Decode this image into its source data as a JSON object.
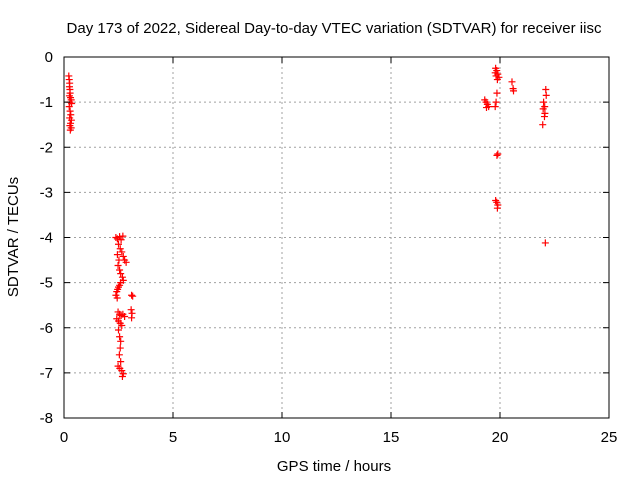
{
  "chart_data": {
    "type": "scatter",
    "title": "Day 173 of 2022, Sidereal Day-to-day VTEC variation (SDTVAR) for receiver iisc",
    "xlabel": "GPS time / hours",
    "ylabel": "SDTVAR / TECUs",
    "xlim": [
      0,
      25
    ],
    "ylim": [
      -8,
      0
    ],
    "xticks": [
      0,
      5,
      10,
      15,
      20,
      25
    ],
    "yticks": [
      0,
      -1,
      -2,
      -3,
      -4,
      -5,
      -6,
      -7,
      -8
    ],
    "grid": true,
    "marker": "+",
    "color": "#ff0000",
    "series": [
      {
        "name": "SDTVAR",
        "points": [
          [
            0.22,
            -0.42
          ],
          [
            0.24,
            -0.5
          ],
          [
            0.26,
            -0.58
          ],
          [
            0.25,
            -0.66
          ],
          [
            0.27,
            -0.72
          ],
          [
            0.28,
            -0.8
          ],
          [
            0.25,
            -0.86
          ],
          [
            0.3,
            -0.9
          ],
          [
            0.33,
            -0.95
          ],
          [
            0.27,
            -1.0
          ],
          [
            0.35,
            -1.03
          ],
          [
            0.24,
            -1.1
          ],
          [
            0.28,
            -1.2
          ],
          [
            0.31,
            -1.28
          ],
          [
            0.26,
            -1.35
          ],
          [
            0.34,
            -1.4
          ],
          [
            0.3,
            -1.47
          ],
          [
            0.27,
            -1.52
          ],
          [
            0.33,
            -1.57
          ],
          [
            0.29,
            -1.62
          ],
          [
            2.38,
            -4.0
          ],
          [
            2.45,
            -4.03
          ],
          [
            2.55,
            -3.98
          ],
          [
            2.62,
            -4.05
          ],
          [
            2.7,
            -3.97
          ],
          [
            2.5,
            -4.15
          ],
          [
            2.58,
            -4.25
          ],
          [
            2.65,
            -4.32
          ],
          [
            2.72,
            -4.42
          ],
          [
            2.78,
            -4.5
          ],
          [
            2.85,
            -4.55
          ],
          [
            2.45,
            -4.38
          ],
          [
            2.52,
            -4.5
          ],
          [
            2.48,
            -4.62
          ],
          [
            2.55,
            -4.72
          ],
          [
            2.6,
            -4.8
          ],
          [
            2.68,
            -4.88
          ],
          [
            2.72,
            -4.95
          ],
          [
            2.6,
            -5.0
          ],
          [
            2.55,
            -5.06
          ],
          [
            2.5,
            -5.1
          ],
          [
            2.46,
            -5.15
          ],
          [
            2.42,
            -5.2
          ],
          [
            2.38,
            -5.28
          ],
          [
            2.44,
            -5.34
          ],
          [
            3.1,
            -5.28
          ],
          [
            3.15,
            -5.3
          ],
          [
            2.48,
            -5.65
          ],
          [
            2.55,
            -5.7
          ],
          [
            2.62,
            -5.73
          ],
          [
            2.7,
            -5.7
          ],
          [
            2.78,
            -5.75
          ],
          [
            2.42,
            -5.8
          ],
          [
            2.5,
            -5.85
          ],
          [
            2.58,
            -5.9
          ],
          [
            2.65,
            -5.95
          ],
          [
            3.08,
            -5.6
          ],
          [
            3.12,
            -5.68
          ],
          [
            3.1,
            -5.78
          ],
          [
            2.5,
            -6.05
          ],
          [
            2.55,
            -6.2
          ],
          [
            2.6,
            -6.3
          ],
          [
            2.58,
            -6.45
          ],
          [
            2.54,
            -6.6
          ],
          [
            2.6,
            -6.75
          ],
          [
            2.48,
            -6.85
          ],
          [
            2.56,
            -6.9
          ],
          [
            2.65,
            -6.95
          ],
          [
            2.72,
            -7.02
          ],
          [
            2.68,
            -7.08
          ],
          [
            19.3,
            -0.95
          ],
          [
            19.36,
            -1.0
          ],
          [
            19.42,
            -1.05
          ],
          [
            19.48,
            -1.1
          ],
          [
            19.38,
            -1.12
          ],
          [
            19.8,
            -0.25
          ],
          [
            19.85,
            -0.3
          ],
          [
            19.78,
            -0.35
          ],
          [
            19.9,
            -0.38
          ],
          [
            19.82,
            -0.42
          ],
          [
            19.95,
            -0.45
          ],
          [
            19.88,
            -0.5
          ],
          [
            19.86,
            -0.8
          ],
          [
            19.82,
            -1.0
          ],
          [
            19.78,
            -1.1
          ],
          [
            19.9,
            -2.15
          ],
          [
            19.86,
            -2.18
          ],
          [
            19.8,
            -3.18
          ],
          [
            19.85,
            -3.22
          ],
          [
            19.9,
            -3.28
          ],
          [
            19.88,
            -3.35
          ],
          [
            20.55,
            -0.55
          ],
          [
            20.6,
            -0.7
          ],
          [
            20.62,
            -0.75
          ],
          [
            22.0,
            -1.0
          ],
          [
            22.05,
            -1.1
          ],
          [
            22.1,
            -0.72
          ],
          [
            22.12,
            -0.85
          ],
          [
            21.98,
            -1.15
          ],
          [
            22.06,
            -1.25
          ],
          [
            22.04,
            -1.32
          ],
          [
            21.96,
            -1.5
          ],
          [
            22.08,
            -4.12
          ]
        ]
      }
    ]
  }
}
